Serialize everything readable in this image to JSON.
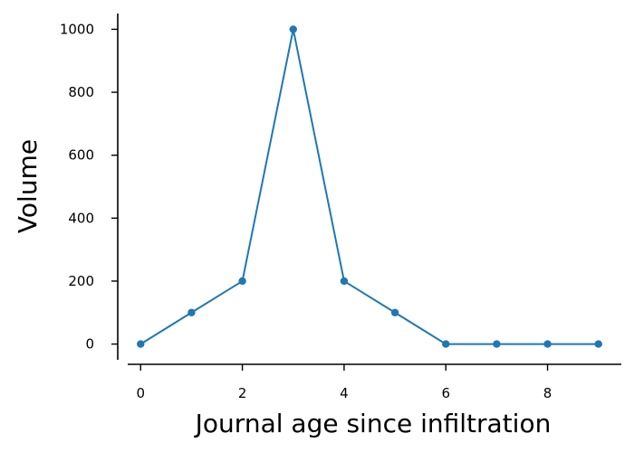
{
  "chart_data": {
    "type": "line",
    "title": "",
    "xlabel": "Journal age since infiltration",
    "ylabel": "Volume",
    "x": [
      0,
      1,
      2,
      3,
      4,
      5,
      6,
      7,
      8,
      9
    ],
    "series": [
      {
        "values": [
          0,
          100,
          200,
          1000,
          200,
          100,
          0,
          0,
          0,
          0
        ]
      }
    ],
    "xlim": [
      -0.45,
      9.45
    ],
    "ylim": [
      -50,
      1050
    ],
    "xticks": [
      0,
      2,
      4,
      6,
      8
    ],
    "yticks": [
      0,
      200,
      400,
      600,
      800,
      1000
    ],
    "grid": false,
    "legend": "none",
    "color": "#1f77b4",
    "spines": "left and bottom only, offset"
  }
}
